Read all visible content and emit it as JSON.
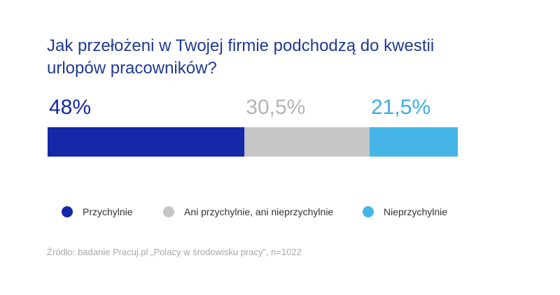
{
  "title": "Jak przełożeni w Twojej firmie podchodzą do kwestii urlopów pracowników?",
  "source": "Źródło: badanie Pracuj.pl „Polacy w środowisku pracy”, n=1022",
  "colors": {
    "title": "#1f3a93",
    "przychylnie": "#1428a8",
    "neutral": "#c6c6c6",
    "nieprzychylnie": "#45b5e8"
  },
  "chart_data": {
    "type": "bar",
    "orientation": "horizontal-stacked-100",
    "title": "Jak przełożeni w Twojej firmie podchodzą do kwestii urlopów pracowników?",
    "xlim": [
      0,
      100
    ],
    "series": [
      {
        "name": "Przychylnie",
        "value": 48,
        "label": "48%",
        "color": "#1428a8",
        "label_color": "#1428a8"
      },
      {
        "name": "Ani przychylnie, ani nieprzychylnie",
        "value": 30.5,
        "label": "30,5%",
        "color": "#c6c6c6",
        "label_color": "#b5b5b5"
      },
      {
        "name": "Nieprzychylnie",
        "value": 21.5,
        "label": "21,5%",
        "color": "#45b5e8",
        "label_color": "#3aaee3"
      }
    ],
    "legend": "bottom"
  }
}
